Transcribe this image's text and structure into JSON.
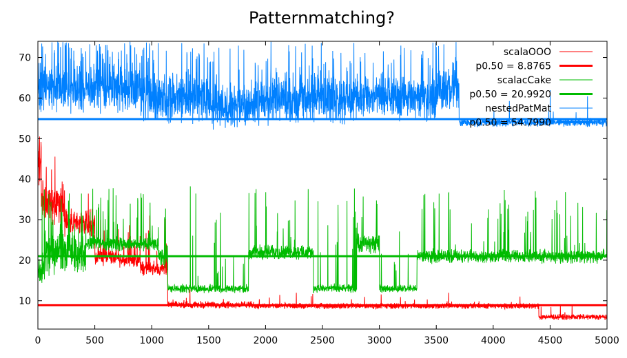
{
  "chart_data": {
    "type": "line",
    "title": "Patternmatching?",
    "xlabel": "",
    "ylabel": "",
    "xlim": [
      0,
      5000
    ],
    "ylim": [
      3,
      74
    ],
    "x_ticks": [
      0,
      500,
      1000,
      1500,
      2000,
      2500,
      3000,
      3500,
      4000,
      4500,
      5000
    ],
    "y_ticks": [
      10,
      20,
      30,
      40,
      50,
      60,
      70
    ],
    "grid": false,
    "legend_position": "top-right",
    "series": [
      {
        "name": "scalaOOO",
        "color": "#ff0000",
        "segments": [
          {
            "x0": 0,
            "x1": 30,
            "base": 45,
            "noise": 8,
            "spike_rate": 0.1,
            "spike_to": 60
          },
          {
            "x0": 30,
            "x1": 230,
            "base": 34,
            "noise": 6,
            "spike_rate": 0.06,
            "spike_to": 47
          },
          {
            "x0": 230,
            "x1": 500,
            "base": 29,
            "noise": 4,
            "spike_rate": 0.05,
            "spike_to": 40
          },
          {
            "x0": 500,
            "x1": 700,
            "base": 21,
            "noise": 2.5,
            "spike_rate": 0.06,
            "spike_to": 33
          },
          {
            "x0": 700,
            "x1": 900,
            "base": 20,
            "noise": 2,
            "spike_rate": 0.05,
            "spike_to": 30
          },
          {
            "x0": 900,
            "x1": 1140,
            "base": 18,
            "noise": 2,
            "spike_rate": 0.08,
            "spike_to": 32
          },
          {
            "x0": 1140,
            "x1": 1900,
            "base": 9,
            "noise": 1.0,
            "spike_rate": 0.02,
            "spike_to": 14
          },
          {
            "x0": 1900,
            "x1": 4400,
            "base": 8.7,
            "noise": 0.8,
            "spike_rate": 0.015,
            "spike_to": 12
          },
          {
            "x0": 4400,
            "x1": 5000,
            "base": 6,
            "noise": 0.8,
            "spike_rate": 0.01,
            "spike_to": 10
          }
        ]
      },
      {
        "name": "p0.50 = 8.8765",
        "color": "#ff0000",
        "constant": 8.8765
      },
      {
        "name": "scalacCake",
        "color": "#00bb00",
        "segments": [
          {
            "x0": 0,
            "x1": 60,
            "base": 17,
            "noise": 4,
            "spike_rate": 0.1,
            "spike_to": 38
          },
          {
            "x0": 60,
            "x1": 420,
            "base": 22,
            "noise": 6,
            "spike_rate": 0.08,
            "spike_to": 38
          },
          {
            "x0": 420,
            "x1": 1060,
            "base": 24,
            "noise": 2,
            "spike_rate": 0.08,
            "spike_to": 38
          },
          {
            "x0": 1060,
            "x1": 1140,
            "base": 21,
            "noise": 3,
            "spike_rate": 0.05,
            "spike_to": 35
          },
          {
            "x0": 1140,
            "x1": 1850,
            "base": 13,
            "noise": 1.2,
            "spike_rate": 0.04,
            "spike_to": 40
          },
          {
            "x0": 1850,
            "x1": 2420,
            "base": 22,
            "noise": 2,
            "spike_rate": 0.05,
            "spike_to": 38
          },
          {
            "x0": 2420,
            "x1": 2800,
            "base": 13,
            "noise": 1.2,
            "spike_rate": 0.05,
            "spike_to": 38
          },
          {
            "x0": 2800,
            "x1": 3000,
            "base": 24,
            "noise": 3,
            "spike_rate": 0.06,
            "spike_to": 38
          },
          {
            "x0": 3000,
            "x1": 3330,
            "base": 13,
            "noise": 1,
            "spike_rate": 0.03,
            "spike_to": 28
          },
          {
            "x0": 3330,
            "x1": 5000,
            "base": 21,
            "noise": 2,
            "spike_rate": 0.05,
            "spike_to": 38
          }
        ]
      },
      {
        "name": "p0.50 = 20.9920",
        "color": "#00bb00",
        "constant": 20.992
      },
      {
        "name": "nestedPatMat",
        "color": "#0080ff",
        "segments": [
          {
            "x0": 0,
            "x1": 900,
            "base": 62,
            "noise": 6,
            "spike_rate": 0.2,
            "spike_to": 74
          },
          {
            "x0": 900,
            "x1": 1500,
            "base": 60,
            "noise": 7,
            "spike_rate": 0.15,
            "spike_to": 74
          },
          {
            "x0": 1500,
            "x1": 2000,
            "base": 58,
            "noise": 6,
            "spike_rate": 0.1,
            "spike_to": 74
          },
          {
            "x0": 2000,
            "x1": 2800,
            "base": 60,
            "noise": 7,
            "spike_rate": 0.12,
            "spike_to": 74
          },
          {
            "x0": 2800,
            "x1": 3500,
            "base": 60,
            "noise": 6,
            "spike_rate": 0.1,
            "spike_to": 74
          },
          {
            "x0": 3500,
            "x1": 3700,
            "base": 62,
            "noise": 6,
            "spike_rate": 0.1,
            "spike_to": 74
          },
          {
            "x0": 3700,
            "x1": 5000,
            "base": 54,
            "noise": 1.2,
            "spike_rate": 0.01,
            "spike_to": 62
          }
        ]
      },
      {
        "name": "p0.50 = 54.7990",
        "color": "#0080ff",
        "constant": 54.799
      }
    ]
  }
}
